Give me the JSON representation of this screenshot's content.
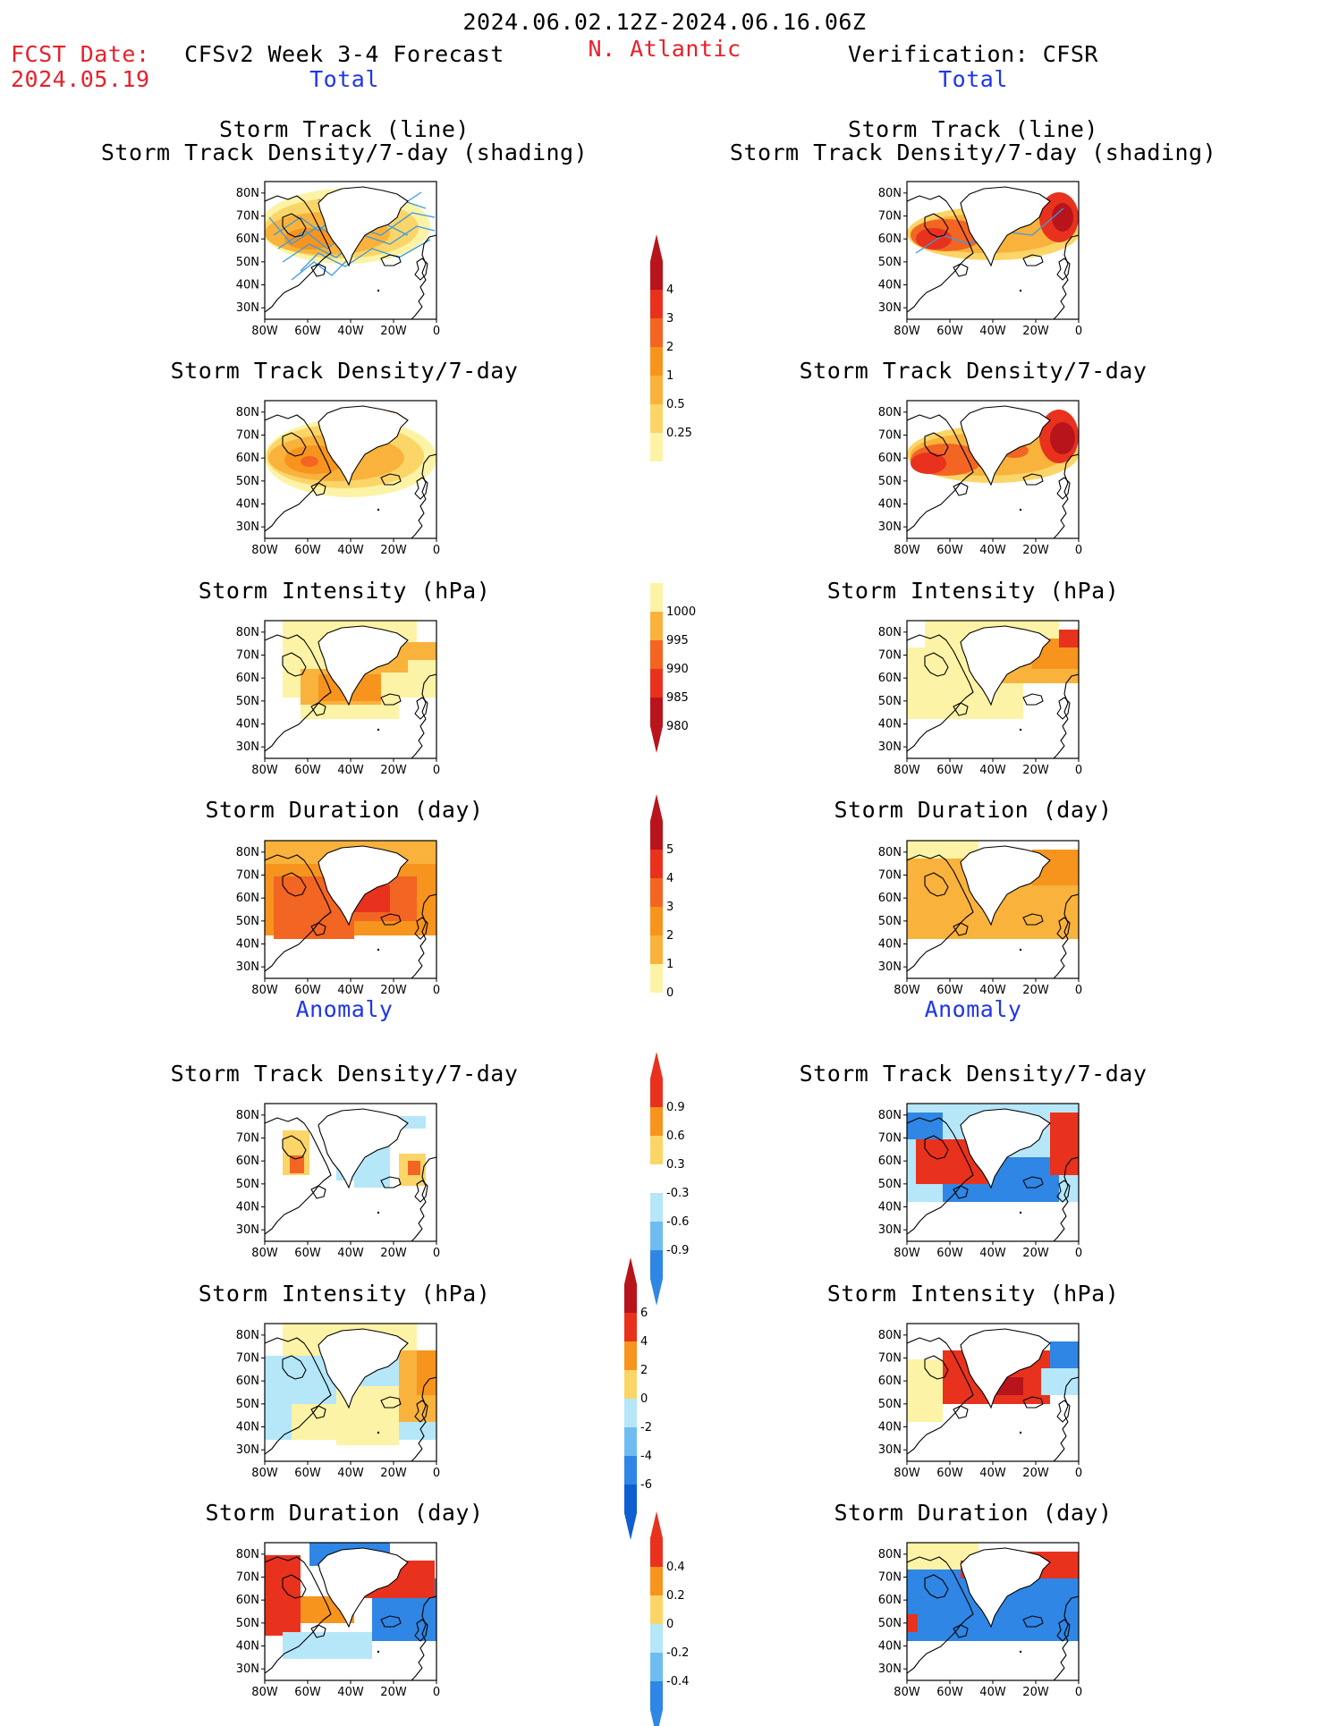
{
  "header": {
    "date_range": "2024.06.02.12Z-2024.06.16.06Z",
    "fcst_label": "FCST Date:",
    "fcst_date": "2024.05.19",
    "left_title": "CFSv2 Week 3-4 Forecast",
    "region": "N. Atlantic",
    "right_title": "Verification: CFSR"
  },
  "sections": {
    "total": "Total",
    "anomaly": "Anomaly"
  },
  "panel_titles": {
    "track_line": "Storm Track (line)",
    "track_shading": "Storm Track Density/7-day (shading)",
    "density": "Storm Track Density/7-day",
    "intensity": "Storm Intensity (hPa)",
    "duration": "Storm Duration (day)"
  },
  "axes": {
    "lat_ticks": [
      "80N",
      "70N",
      "60N",
      "50N",
      "40N",
      "30N"
    ],
    "lon_ticks": [
      "80W",
      "60W",
      "40W",
      "20W",
      "0"
    ]
  },
  "colorbars": {
    "density_total": [
      "4",
      "3",
      "2",
      "1",
      "0.5",
      "0.25"
    ],
    "intensity_total": [
      "1000",
      "995",
      "990",
      "985",
      "980"
    ],
    "duration_total": [
      "5",
      "4",
      "3",
      "2",
      "1",
      "0"
    ],
    "density_anom": [
      "0.9",
      "0.6",
      "0.3",
      "-0.3",
      "-0.6",
      "-0.9"
    ],
    "intensity_anom": [
      "6",
      "4",
      "2",
      "0",
      "-2",
      "-4",
      "-6"
    ],
    "duration_anom": [
      "0.4",
      "0.2",
      "0",
      "-0.2",
      "-0.4"
    ]
  },
  "colors": {
    "yellow_light": "#fdf3a6",
    "yellow": "#fbd567",
    "orange_light": "#f9b23c",
    "orange": "#f7941d",
    "orange_dark": "#f26522",
    "red": "#e8321e",
    "dark_red": "#b8141c",
    "maroon": "#8b0a0a",
    "blue_light": "#b5e7f9",
    "blue_mid": "#6fbdf0",
    "blue": "#2f86e4",
    "blue_dark": "#0e5fd1",
    "track_line": "#3c9ae0"
  }
}
